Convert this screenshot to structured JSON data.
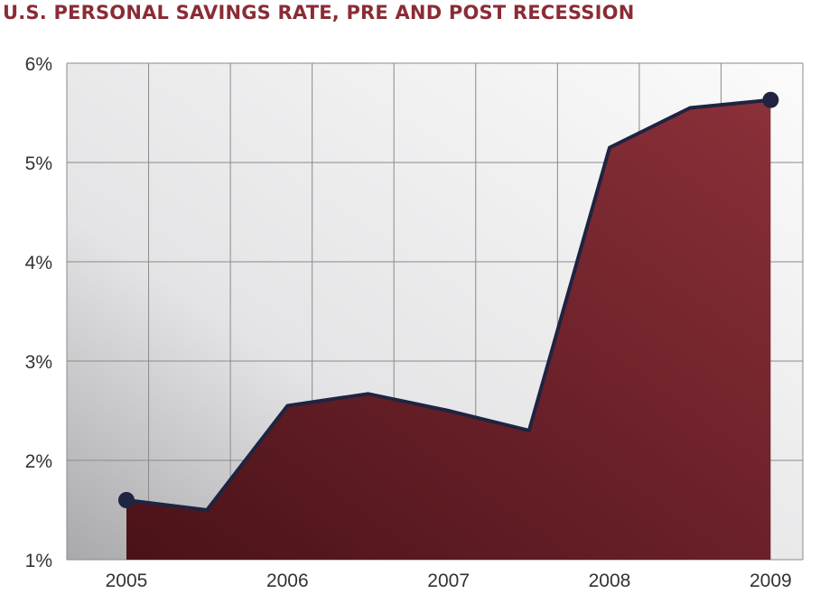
{
  "title": "U.S. PERSONAL SAVINGS RATE, PRE AND POST RECESSION",
  "colors": {
    "title": "#8a2c35",
    "area_top": "#7e2a35",
    "area_bottom": "#4a1218",
    "outline": "#1f2440",
    "marker": "#1f2440",
    "grid": "#8a8a8a"
  },
  "chart_data": {
    "type": "area",
    "title": "U.S. PERSONAL SAVINGS RATE, PRE AND POST RECESSION",
    "xlabel": "",
    "ylabel": "",
    "x_ticks": [
      "2005",
      "2006",
      "2007",
      "2008",
      "2009"
    ],
    "y_ticks": [
      "1%",
      "2%",
      "3%",
      "4%",
      "5%",
      "6%"
    ],
    "xlim": [
      2004.63,
      2009.2
    ],
    "ylim": [
      1,
      6
    ],
    "grid": true,
    "series": [
      {
        "x": [
          2005.0,
          2005.5,
          2006.0,
          2006.5,
          2007.0,
          2007.5,
          2008.0,
          2008.25,
          2008.5,
          2009.0
        ],
        "values": [
          1.6,
          1.5,
          2.55,
          2.67,
          2.5,
          2.3,
          5.15,
          5.35,
          5.55,
          5.63
        ]
      }
    ],
    "markers_at": [
      0,
      9
    ]
  }
}
